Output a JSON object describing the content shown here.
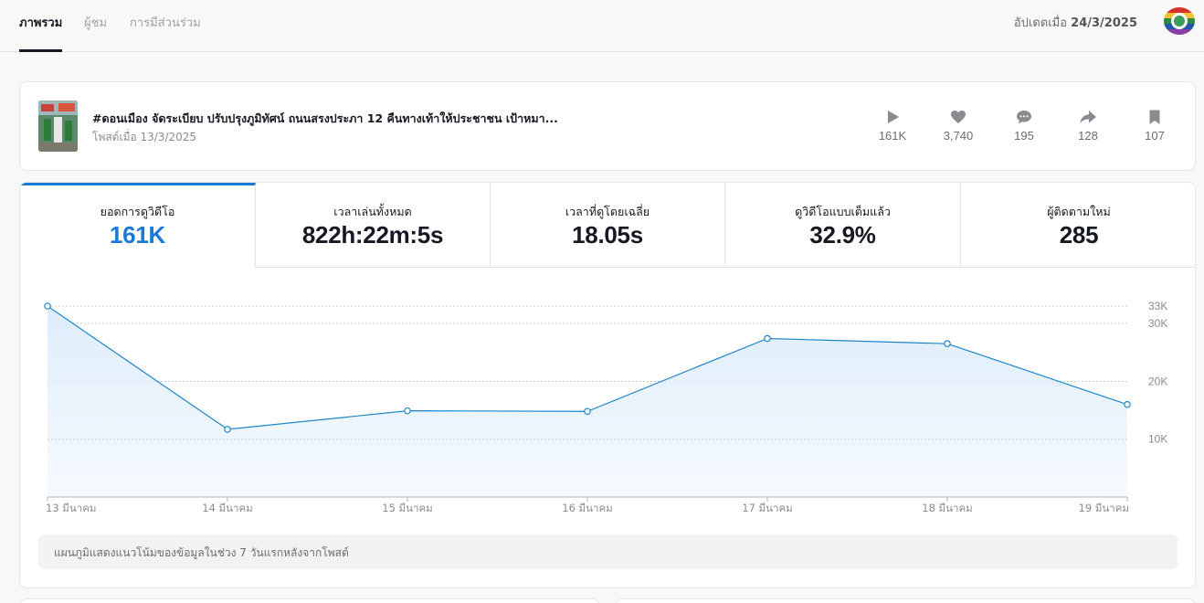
{
  "header": {
    "tabs": [
      {
        "label": "ภาพรวม",
        "active": true
      },
      {
        "label": "ผู้ชม",
        "active": false
      },
      {
        "label": "การมีส่วนร่วม",
        "active": false
      }
    ],
    "updated_prefix": "อัปเดตเมื่อ",
    "updated_date": "24/3/2025"
  },
  "post": {
    "title": "#ดอนเมือง จัดระเบียบ ปรับปรุงภูมิทัศน์ ถนนสรงประภา 12 คืนทางเท้าให้ประชาชน เป้าหมา...",
    "posted": "โพสต์เมื่อ 13/3/2025",
    "stats": [
      {
        "icon": "play-icon",
        "value": "161K"
      },
      {
        "icon": "heart-icon",
        "value": "3,740"
      },
      {
        "icon": "comment-icon",
        "value": "195"
      },
      {
        "icon": "share-icon",
        "value": "128"
      },
      {
        "icon": "bookmark-icon",
        "value": "107"
      }
    ]
  },
  "metrics": [
    {
      "label": "ยอดการดูวิดีโอ",
      "value": "161K",
      "active": true
    },
    {
      "label": "เวลาเล่นทั้งหมด",
      "value": "822h:22m:5s",
      "active": false
    },
    {
      "label": "เวลาที่ดูโดยเฉลี่ย",
      "value": "18.05s",
      "active": false
    },
    {
      "label": "ดูวิดีโอแบบเต็มแล้ว",
      "value": "32.9%",
      "active": false
    },
    {
      "label": "ผู้ติดตามใหม่",
      "value": "285",
      "active": false
    }
  ],
  "chart_data": {
    "type": "area",
    "categories": [
      "13 มีนาคม",
      "14 มีนาคม",
      "15 มีนาคม",
      "16 มีนาคม",
      "17 มีนาคม",
      "18 มีนาคม",
      "19 มีนาคม"
    ],
    "values": [
      33000,
      11700,
      14900,
      14800,
      27400,
      26500,
      16000
    ],
    "y_ticks": [
      {
        "value": 10000,
        "label": "10K"
      },
      {
        "value": 20000,
        "label": "20K"
      },
      {
        "value": 30000,
        "label": "30K"
      },
      {
        "value": 33000,
        "label": "33K"
      }
    ],
    "ylim": [
      0,
      33000
    ],
    "grid": true,
    "line_color": "#1f87c9",
    "fill_color": "#dcecfb"
  },
  "chart_caption": "แผนภูมิแสดงแนวโน้มของข้อมูลในช่วง 7 วันแรกหลังจากโพสต์",
  "colors": {
    "accent": "#1a7bd6"
  }
}
